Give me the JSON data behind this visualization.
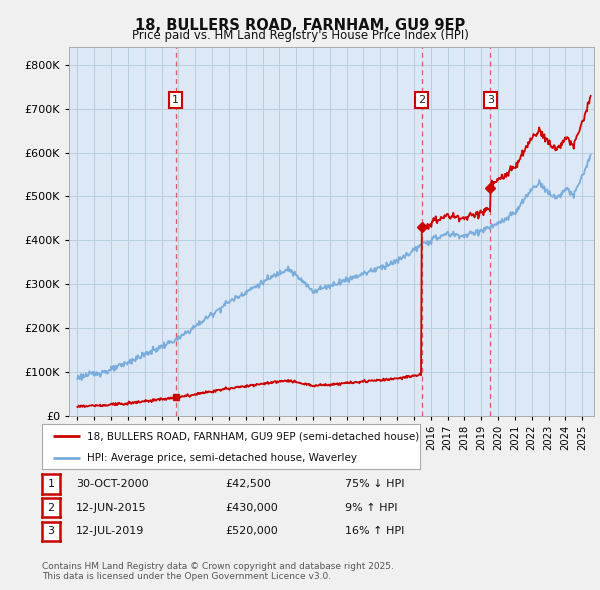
{
  "title": "18, BULLERS ROAD, FARNHAM, GU9 9EP",
  "subtitle": "Price paid vs. HM Land Registry's House Price Index (HPI)",
  "property_label": "18, BULLERS ROAD, FARNHAM, GU9 9EP (semi-detached house)",
  "hpi_label": "HPI: Average price, semi-detached house, Waverley",
  "transactions": [
    {
      "num": 1,
      "date": "30-OCT-2000",
      "price": 42500,
      "hpi_rel": "75% ↓ HPI",
      "year": 2000.83
    },
    {
      "num": 2,
      "date": "12-JUN-2015",
      "price": 430000,
      "hpi_rel": "9% ↑ HPI",
      "year": 2015.45
    },
    {
      "num": 3,
      "date": "12-JUL-2019",
      "price": 520000,
      "hpi_rel": "16% ↑ HPI",
      "year": 2019.54
    }
  ],
  "footer": "Contains HM Land Registry data © Crown copyright and database right 2025.\nThis data is licensed under the Open Government Licence v3.0.",
  "ylim": [
    0,
    840000
  ],
  "xlim_start": 1994.5,
  "xlim_end": 2025.7,
  "property_color": "#cc0000",
  "hpi_color": "#7aaddb",
  "vline_color": "#dd4444",
  "background_color": "#f0f0f0",
  "plot_bg_color": "#dce8f5",
  "grid_color": "#b8cfe0",
  "label_box_color": "#cc0000",
  "yticks": [
    0,
    100000,
    200000,
    300000,
    400000,
    500000,
    600000,
    700000,
    800000
  ]
}
